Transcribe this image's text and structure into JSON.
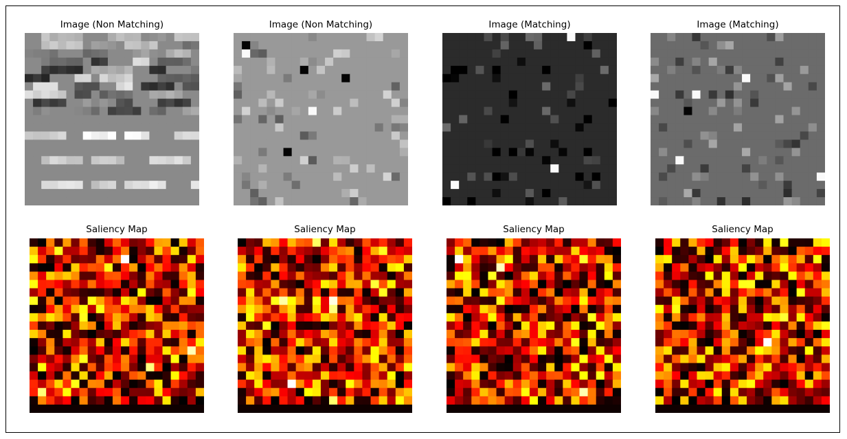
{
  "figure": {
    "background": "#ffffff",
    "border_color": "#000000"
  },
  "chart_data": [
    {
      "type": "heatmap",
      "title": "Image (Non Matching)",
      "colormap": "gray",
      "grid_size": 21,
      "base_level": 0.54,
      "axes_visible": false,
      "description": "grayscale image, gray background with horizontal bands of light and dark blocks"
    },
    {
      "type": "heatmap",
      "title": "Image (Non Matching)",
      "colormap": "gray",
      "grid_size": 21,
      "base_level": 0.6,
      "axes_visible": false,
      "description": "light gray image with sparse lighter and darker pixels"
    },
    {
      "type": "heatmap",
      "title": "Image (Matching)",
      "colormap": "gray",
      "grid_size": 21,
      "base_level": 0.17,
      "axes_visible": false,
      "description": "dark gray image with sparse light and black pixels"
    },
    {
      "type": "heatmap",
      "title": "Image (Matching)",
      "colormap": "gray",
      "grid_size": 21,
      "base_level": 0.42,
      "axes_visible": false,
      "description": "medium gray image with sparse light and dark pixels"
    },
    {
      "type": "heatmap",
      "title": "Saliency Map",
      "colormap": "hot",
      "grid_size": 21,
      "bottom_row_value": 0.02,
      "axes_visible": false,
      "description": "random-looking saliency values from black through red and yellow to white"
    },
    {
      "type": "heatmap",
      "title": "Saliency Map",
      "colormap": "hot",
      "grid_size": 21,
      "bottom_row_value": 0.02,
      "axes_visible": false,
      "description": "random-looking saliency values from black through red and yellow to white"
    },
    {
      "type": "heatmap",
      "title": "Saliency Map",
      "colormap": "hot",
      "grid_size": 21,
      "bottom_row_value": 0.02,
      "axes_visible": false,
      "description": "random-looking saliency values from black through red and yellow to white"
    },
    {
      "type": "heatmap",
      "title": "Saliency Map",
      "colormap": "hot",
      "grid_size": 21,
      "bottom_row_value": 0.02,
      "axes_visible": false,
      "description": "random-looking saliency values from black through red and yellow to white"
    }
  ]
}
